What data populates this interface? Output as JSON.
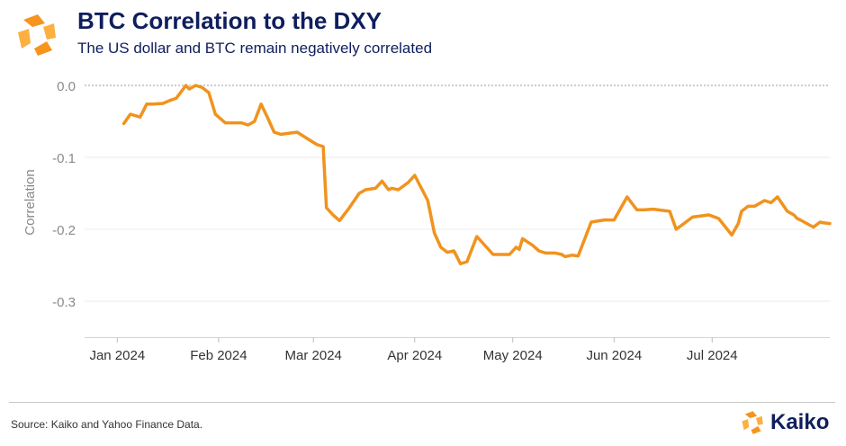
{
  "header": {
    "title": "BTC Correlation to the DXY",
    "subtitle": "The US dollar and BTC remain negatively correlated"
  },
  "footer": {
    "source": "Source: Kaiko and Yahoo Finance Data.",
    "brand": "Kaiko"
  },
  "colors": {
    "line": "#f0931e",
    "title": "#0f1e5c",
    "logo_orange": "#f7941d",
    "logo_amber": "#fbb040"
  },
  "icons": [
    "kaiko-logo-icon"
  ],
  "chart_data": {
    "type": "line",
    "ylabel": "Correlation",
    "xlabel": "",
    "ylim": [
      -0.35,
      0.0
    ],
    "yticks": [
      0.0,
      -0.1,
      -0.2,
      -0.3
    ],
    "ytick_labels": [
      "0.0",
      "-0.1",
      "-0.2",
      "-0.3"
    ],
    "xlim": [
      "2023-12-22",
      "2024-08-06"
    ],
    "xticks": [
      "2024-01-01",
      "2024-02-01",
      "2024-03-01",
      "2024-04-01",
      "2024-05-01",
      "2024-06-01",
      "2024-07-01"
    ],
    "xtick_labels": [
      "Jan 2024",
      "Feb 2024",
      "Mar 2024",
      "Apr 2024",
      "May 2024",
      "Jun 2024",
      "Jul 2024"
    ],
    "grid": true,
    "zero_line": "dotted",
    "series": [
      {
        "x": [
          "2024-01-03",
          "2024-01-05",
          "2024-01-08",
          "2024-01-10",
          "2024-01-12",
          "2024-01-15",
          "2024-01-17",
          "2024-01-19",
          "2024-01-22",
          "2024-01-23",
          "2024-01-25",
          "2024-01-27",
          "2024-01-29",
          "2024-01-31",
          "2024-02-03",
          "2024-02-05",
          "2024-02-08",
          "2024-02-10",
          "2024-02-12",
          "2024-02-14",
          "2024-02-16",
          "2024-02-18",
          "2024-02-20",
          "2024-02-25",
          "2024-03-02",
          "2024-03-04",
          "2024-03-05",
          "2024-03-07",
          "2024-03-09",
          "2024-03-12",
          "2024-03-15",
          "2024-03-17",
          "2024-03-20",
          "2024-03-22",
          "2024-03-24",
          "2024-03-25",
          "2024-03-27",
          "2024-03-30",
          "2024-04-01",
          "2024-04-05",
          "2024-04-07",
          "2024-04-08",
          "2024-04-09",
          "2024-04-11",
          "2024-04-13",
          "2024-04-15",
          "2024-04-17",
          "2024-04-20",
          "2024-04-25",
          "2024-04-30",
          "2024-05-02",
          "2024-05-03",
          "2024-05-04",
          "2024-05-07",
          "2024-05-09",
          "2024-05-11",
          "2024-05-14",
          "2024-05-16",
          "2024-05-17",
          "2024-05-19",
          "2024-05-21",
          "2024-05-25",
          "2024-05-29",
          "2024-06-01",
          "2024-06-05",
          "2024-06-08",
          "2024-06-10",
          "2024-06-13",
          "2024-06-18",
          "2024-06-20",
          "2024-06-25",
          "2024-06-30",
          "2024-07-03",
          "2024-07-07",
          "2024-07-09",
          "2024-07-10",
          "2024-07-12",
          "2024-07-14",
          "2024-07-17",
          "2024-07-19",
          "2024-07-21",
          "2024-07-24",
          "2024-07-26",
          "2024-07-27",
          "2024-07-28",
          "2024-08-01",
          "2024-08-03",
          "2024-08-04",
          "2024-08-06"
        ],
        "values": [
          -0.053,
          -0.04,
          -0.044,
          -0.026,
          -0.026,
          -0.025,
          -0.021,
          -0.018,
          0.0,
          -0.005,
          0.0,
          -0.003,
          -0.01,
          -0.04,
          -0.052,
          -0.052,
          -0.052,
          -0.055,
          -0.05,
          -0.026,
          -0.045,
          -0.065,
          -0.068,
          -0.065,
          -0.082,
          -0.085,
          -0.17,
          -0.18,
          -0.188,
          -0.17,
          -0.15,
          -0.145,
          -0.143,
          -0.133,
          -0.145,
          -0.143,
          -0.145,
          -0.135,
          -0.125,
          -0.16,
          -0.205,
          -0.215,
          -0.225,
          -0.232,
          -0.23,
          -0.248,
          -0.245,
          -0.21,
          -0.235,
          -0.235,
          -0.225,
          -0.228,
          -0.213,
          -0.222,
          -0.23,
          -0.233,
          -0.233,
          -0.235,
          -0.238,
          -0.236,
          -0.237,
          -0.19,
          -0.187,
          -0.187,
          -0.155,
          -0.173,
          -0.173,
          -0.172,
          -0.175,
          -0.2,
          -0.183,
          -0.18,
          -0.185,
          -0.208,
          -0.192,
          -0.175,
          -0.168,
          -0.168,
          -0.16,
          -0.163,
          -0.155,
          -0.175,
          -0.18,
          -0.185,
          -0.187,
          -0.197,
          -0.19,
          -0.191,
          -0.192
        ]
      }
    ]
  }
}
